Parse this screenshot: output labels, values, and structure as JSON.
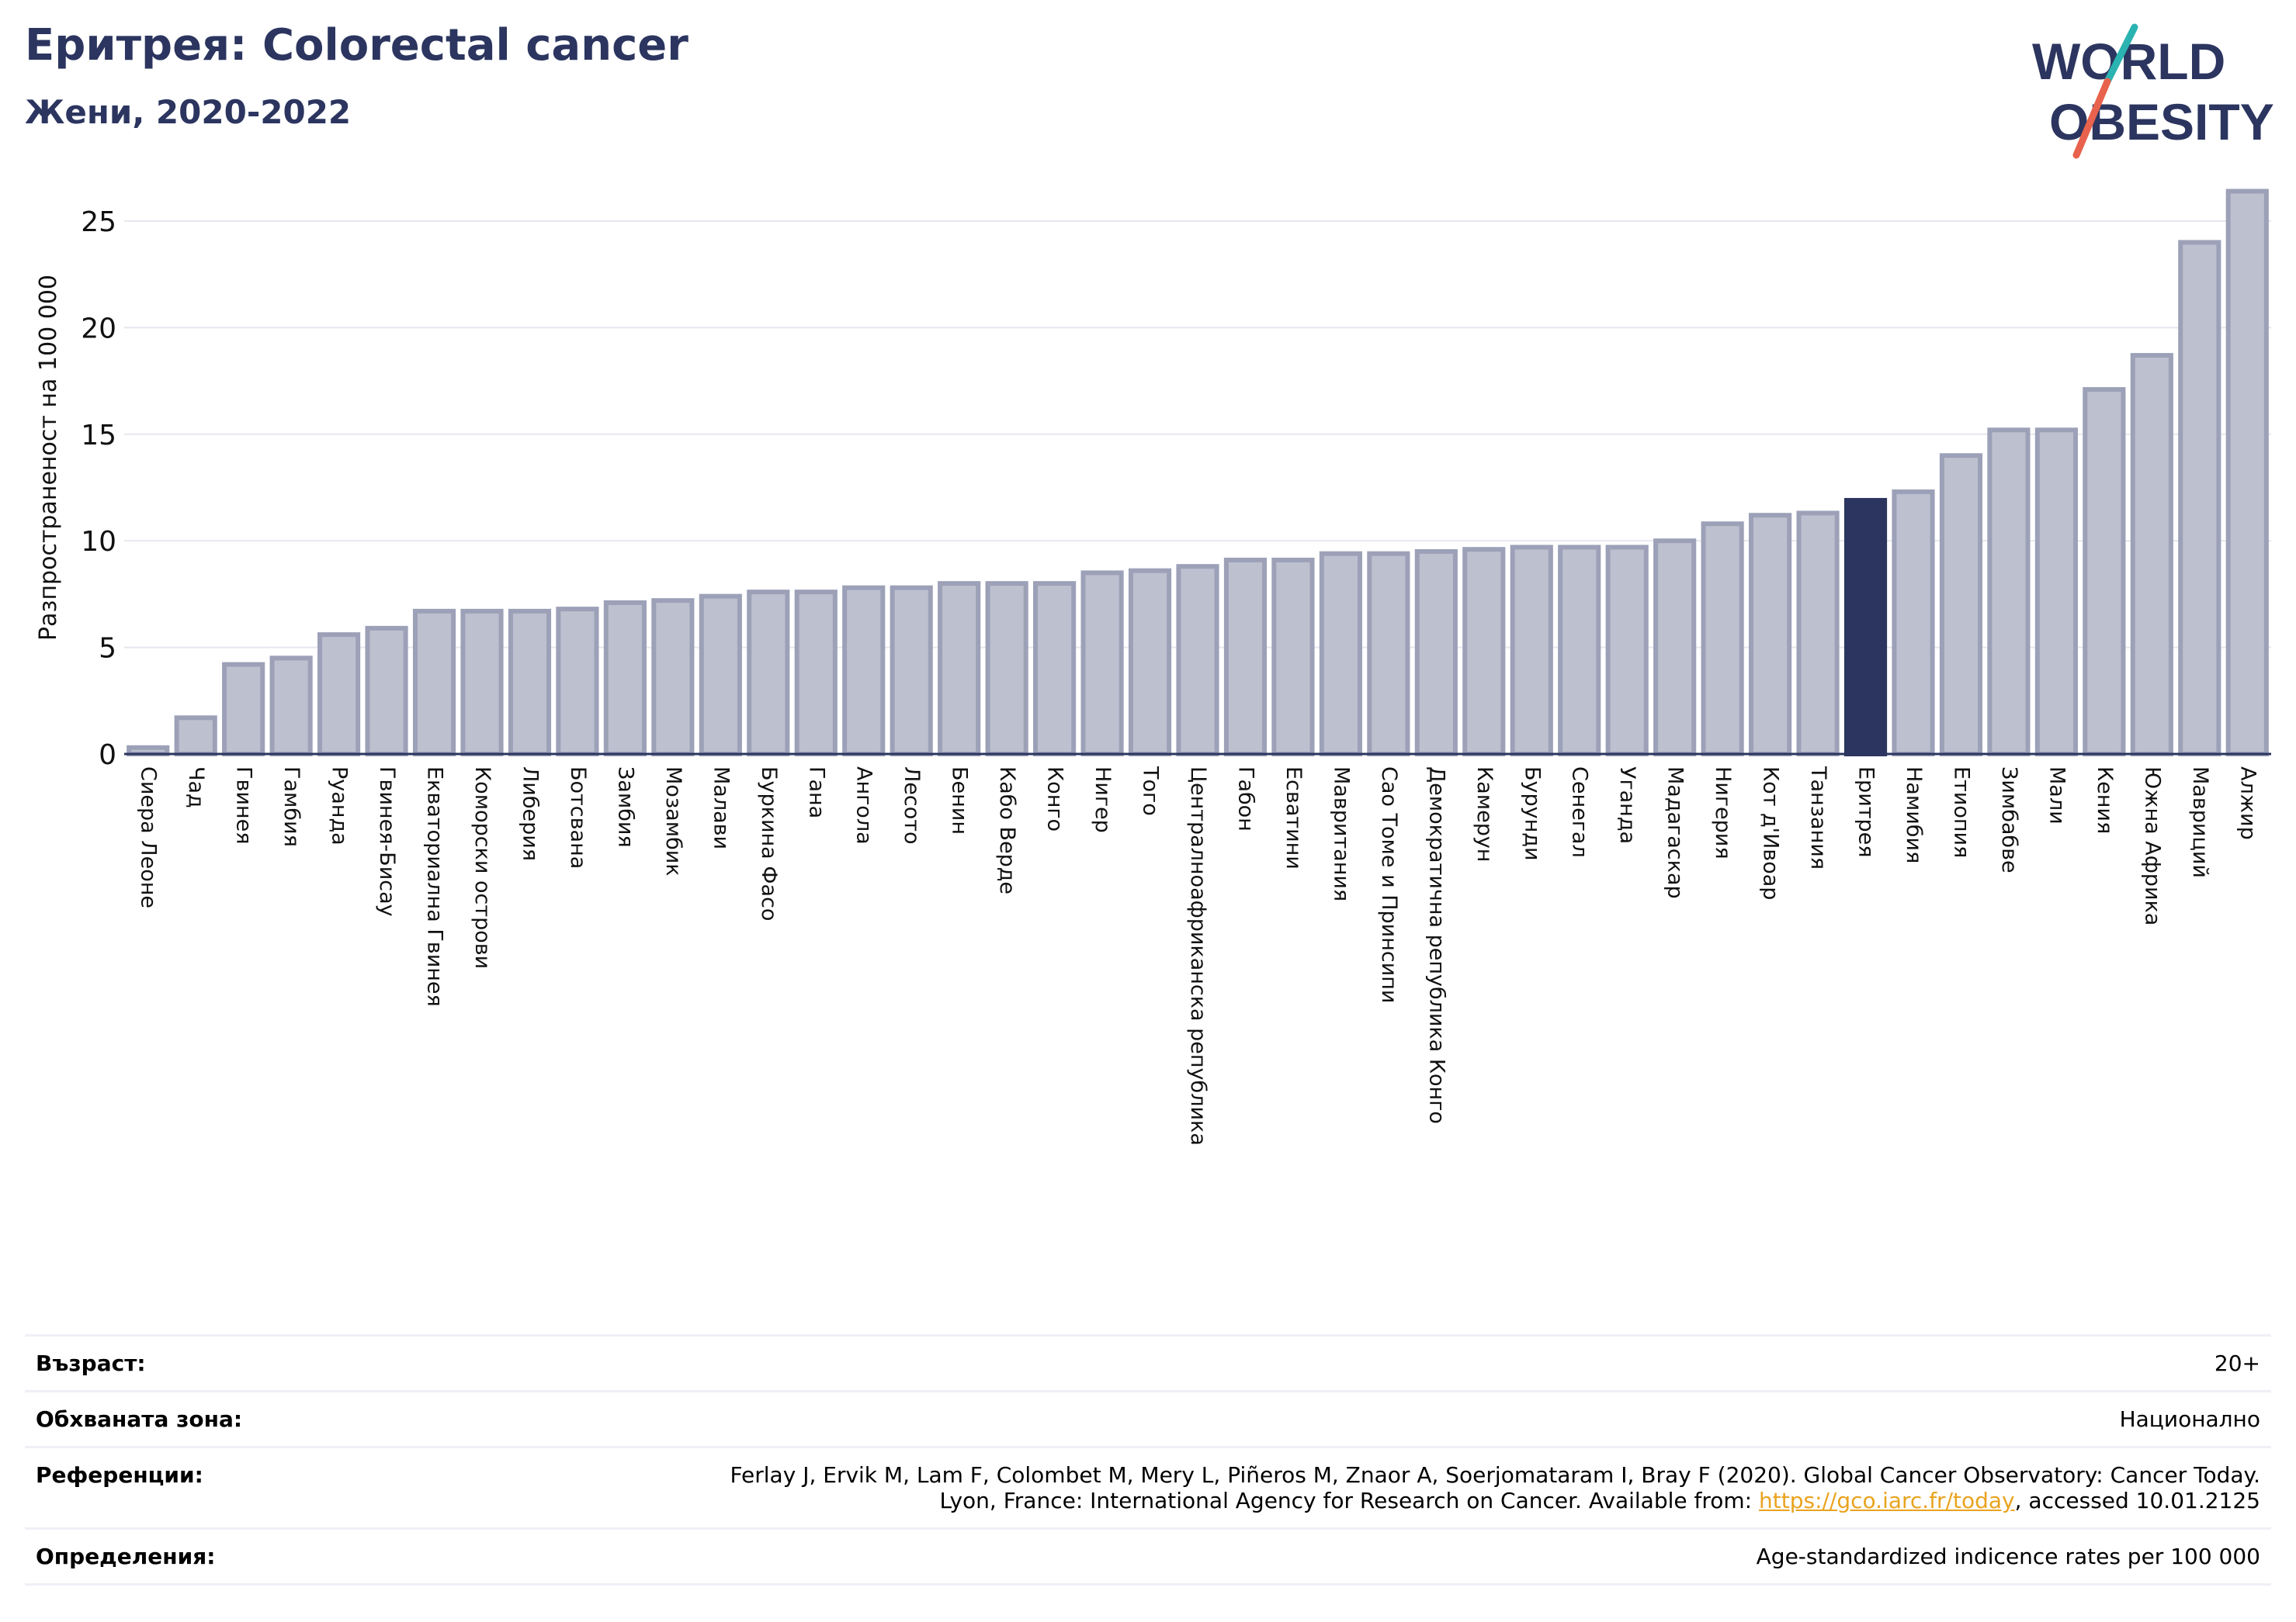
{
  "header": {
    "title": "Еритрея: Colorectal cancer",
    "subtitle": "Жени, 2020-2022"
  },
  "logo": {
    "line1": "WORLD",
    "line2": "OBESITY",
    "colors": {
      "text": "#2b355f",
      "slash_top": "#2bb3b1",
      "slash_bottom": "#e8624d"
    }
  },
  "chart_data": {
    "type": "bar",
    "title": "",
    "xlabel": "",
    "ylabel": "Разпространеност  на 100 000",
    "ylim": [
      0,
      27
    ],
    "yticks": [
      0,
      5,
      10,
      15,
      20,
      25
    ],
    "grid": true,
    "highlight": "Еритрея",
    "colors": {
      "bar": "#bcc0cf",
      "bar_edge": "#9ca1b8",
      "highlight": "#2b355f",
      "grid": "#e6e8ef",
      "axis": "#2b355f"
    },
    "categories": [
      "Сиера Леоне",
      "Чад",
      "Гвинея",
      "Гамбия",
      "Руанда",
      "Гвинея-Бисау",
      "Екваториална Гвинея",
      "Коморски острови",
      "Либерия",
      "Ботсвана",
      "Замбия",
      "Мозамбик",
      "Малави",
      "Буркина Фасо",
      "Гана",
      "Ангола",
      "Лесото",
      "Бенин",
      "Кабо Верде",
      "Конго",
      "Нигер",
      "Того",
      "Централноафриканска република",
      "Габон",
      "Есватини",
      "Мавритания",
      "Сао Томе и Принсипи",
      "Демократична република Конго",
      "Камерун",
      "Бурунди",
      "Сенегал",
      "Уганда",
      "Мадагаскар",
      "Нигерия",
      "Кот д'Ивоар",
      "Танзания",
      "Еритрея",
      "Намибия",
      "Етиопия",
      "Зимбабве",
      "Мали",
      "Кения",
      "Южна Африка",
      "Мавриций",
      "Алжир"
    ],
    "values": [
      0.3,
      1.7,
      4.2,
      4.5,
      5.6,
      5.9,
      6.7,
      6.7,
      6.7,
      6.8,
      7.1,
      7.2,
      7.4,
      7.6,
      7.6,
      7.8,
      7.8,
      8.0,
      8.0,
      8.0,
      8.5,
      8.6,
      8.8,
      9.1,
      9.1,
      9.4,
      9.4,
      9.5,
      9.6,
      9.7,
      9.7,
      9.7,
      10.0,
      10.8,
      11.2,
      11.3,
      11.9,
      12.3,
      14.0,
      15.2,
      15.2,
      17.1,
      18.7,
      24.0,
      26.4
    ]
  },
  "info": {
    "rows": [
      {
        "key": "Възраст:",
        "value": "20+"
      },
      {
        "key": "Обхваната зона:",
        "value": "Национално"
      },
      {
        "key": "Референции:",
        "value_line1": "Ferlay J, Ervik M, Lam F, Colombet M, Mery L, Piñeros M, Znaor A, Soerjomataram I, Bray F (2020). Global Cancer Observatory: Cancer Today.",
        "value_line2_pre": "Lyon, France: International Agency for Research on Cancer. Available from: ",
        "value_line2_link": "https://gco.iarc.fr/today",
        "value_line2_post": ", accessed 10.01.2125"
      },
      {
        "key": "Определения:",
        "value": "Age-standardized indicence rates per 100 000"
      }
    ]
  }
}
